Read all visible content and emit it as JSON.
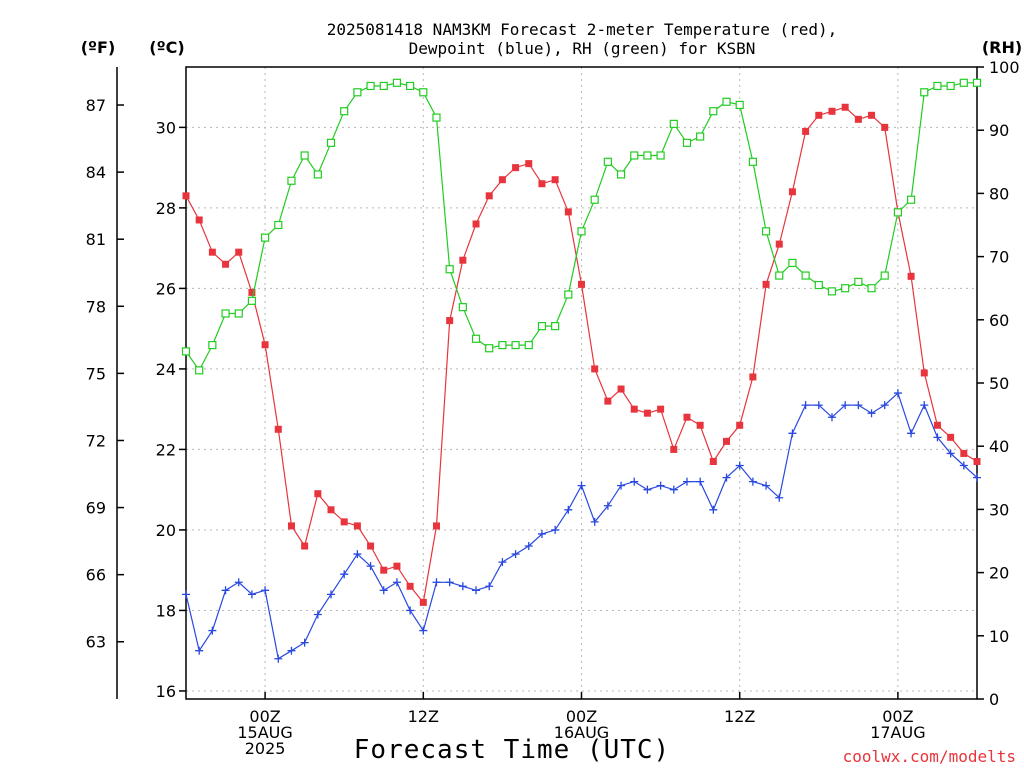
{
  "chart_data": {
    "type": "line",
    "title_line1": "2025081418 NAM3KM Forecast 2-meter Temperature (red),",
    "title_line2": "Dewpoint (blue), RH (green) for KSBN",
    "xlabel": "Forecast Time (UTC)",
    "credit": "coolwx.com/modelts",
    "units": {
      "fahrenheit": "(ºF)",
      "celsius": "(ºC)",
      "rh": "(RH)"
    },
    "x_range_hours": [
      18,
      78
    ],
    "celsius_range": [
      15.8,
      31.5
    ],
    "rh_range": [
      0,
      100
    ],
    "grid": true,
    "x_ticks": [
      {
        "hour": 24,
        "line1": "00Z",
        "line2": "15AUG",
        "line3": "2025"
      },
      {
        "hour": 36,
        "line1": "12Z",
        "line2": "",
        "line3": ""
      },
      {
        "hour": 48,
        "line1": "00Z",
        "line2": "16AUG",
        "line3": ""
      },
      {
        "hour": 60,
        "line1": "12Z",
        "line2": "",
        "line3": ""
      },
      {
        "hour": 72,
        "line1": "00Z",
        "line2": "17AUG",
        "line3": ""
      }
    ],
    "celsius_ticks": [
      16,
      18,
      20,
      22,
      24,
      26,
      28,
      30
    ],
    "fahrenheit_ticks": [
      63,
      66,
      69,
      72,
      75,
      78,
      81,
      84,
      87
    ],
    "rh_ticks": [
      0,
      10,
      20,
      30,
      40,
      50,
      60,
      70,
      80,
      90,
      100
    ],
    "series": [
      {
        "name": "Temperature",
        "unit": "C",
        "color": "#e8343c",
        "marker": "filled-square",
        "x": [
          18,
          19,
          20,
          21,
          22,
          23,
          24,
          25,
          26,
          27,
          28,
          29,
          30,
          31,
          32,
          33,
          34,
          35,
          36,
          37,
          38,
          39,
          40,
          41,
          42,
          43,
          44,
          45,
          46,
          47,
          48,
          49,
          50,
          51,
          52,
          53,
          54,
          55,
          56,
          57,
          58,
          59,
          60,
          61,
          62,
          63,
          64,
          65,
          66,
          67,
          68,
          69,
          70,
          71,
          72,
          73,
          74,
          75,
          76,
          77,
          78
        ],
        "values": [
          28.3,
          27.7,
          26.9,
          26.6,
          26.9,
          25.9,
          24.6,
          22.5,
          20.1,
          19.6,
          20.9,
          20.5,
          20.2,
          20.1,
          19.6,
          19.0,
          19.1,
          18.6,
          18.2,
          20.1,
          25.2,
          26.7,
          27.6,
          28.3,
          28.7,
          29.0,
          29.1,
          28.6,
          28.7,
          27.9,
          26.1,
          24.0,
          23.2,
          23.5,
          23.0,
          22.9,
          23.0,
          22.0,
          22.8,
          22.6,
          21.7,
          22.2,
          22.6,
          23.8,
          26.1,
          27.1,
          28.4,
          29.9,
          30.3,
          30.4,
          30.5,
          30.2,
          30.3,
          30.0,
          27.9,
          26.3,
          23.9,
          22.6,
          22.3,
          21.9,
          21.7
        ]
      },
      {
        "name": "Dewpoint",
        "unit": "C",
        "color": "#2848e0",
        "marker": "plus",
        "x": [
          18,
          19,
          20,
          21,
          22,
          23,
          24,
          25,
          26,
          27,
          28,
          29,
          30,
          31,
          32,
          33,
          34,
          35,
          36,
          37,
          38,
          39,
          40,
          41,
          42,
          43,
          44,
          45,
          46,
          47,
          48,
          49,
          50,
          51,
          52,
          53,
          54,
          55,
          56,
          57,
          58,
          59,
          60,
          61,
          62,
          63,
          64,
          65,
          66,
          67,
          68,
          69,
          70,
          71,
          72,
          73,
          74,
          75,
          76,
          77,
          78
        ],
        "values": [
          18.4,
          17.0,
          17.5,
          18.5,
          18.7,
          18.4,
          18.5,
          16.8,
          17.0,
          17.2,
          17.9,
          18.4,
          18.9,
          19.4,
          19.1,
          18.5,
          18.7,
          18.0,
          17.5,
          18.7,
          18.7,
          18.6,
          18.5,
          18.6,
          19.2,
          19.4,
          19.6,
          19.9,
          20.0,
          20.5,
          21.1,
          20.2,
          20.6,
          21.1,
          21.2,
          21.0,
          21.1,
          21.0,
          21.2,
          21.2,
          20.5,
          21.3,
          21.6,
          21.2,
          21.1,
          20.8,
          22.4,
          23.1,
          23.1,
          22.8,
          23.1,
          23.1,
          22.9,
          23.1,
          23.4,
          22.4,
          23.1,
          22.3,
          21.9,
          21.6,
          21.3
        ]
      },
      {
        "name": "RH",
        "unit": "%",
        "color": "#22cc22",
        "marker": "open-square",
        "x": [
          18,
          19,
          20,
          21,
          22,
          23,
          24,
          25,
          26,
          27,
          28,
          29,
          30,
          31,
          32,
          33,
          34,
          35,
          36,
          37,
          38,
          39,
          40,
          41,
          42,
          43,
          44,
          45,
          46,
          47,
          48,
          49,
          50,
          51,
          52,
          53,
          54,
          55,
          56,
          57,
          58,
          59,
          60,
          61,
          62,
          63,
          64,
          65,
          66,
          67,
          68,
          69,
          70,
          71,
          72,
          73,
          74,
          75,
          76,
          77,
          78
        ],
        "values": [
          55,
          52,
          56,
          61,
          61,
          63,
          73,
          75,
          82,
          86,
          83,
          88,
          93,
          96,
          97,
          97,
          97.5,
          97,
          96,
          92,
          68,
          62,
          57,
          55.5,
          56,
          56,
          56,
          59,
          59,
          64,
          74,
          79,
          85,
          83,
          86,
          86,
          86,
          91,
          88,
          89,
          93,
          94.5,
          94,
          85,
          74,
          67,
          69,
          67,
          65.5,
          64.5,
          65,
          66,
          65,
          67,
          77,
          79,
          96,
          97,
          97,
          97.5,
          97.5
        ]
      }
    ]
  }
}
